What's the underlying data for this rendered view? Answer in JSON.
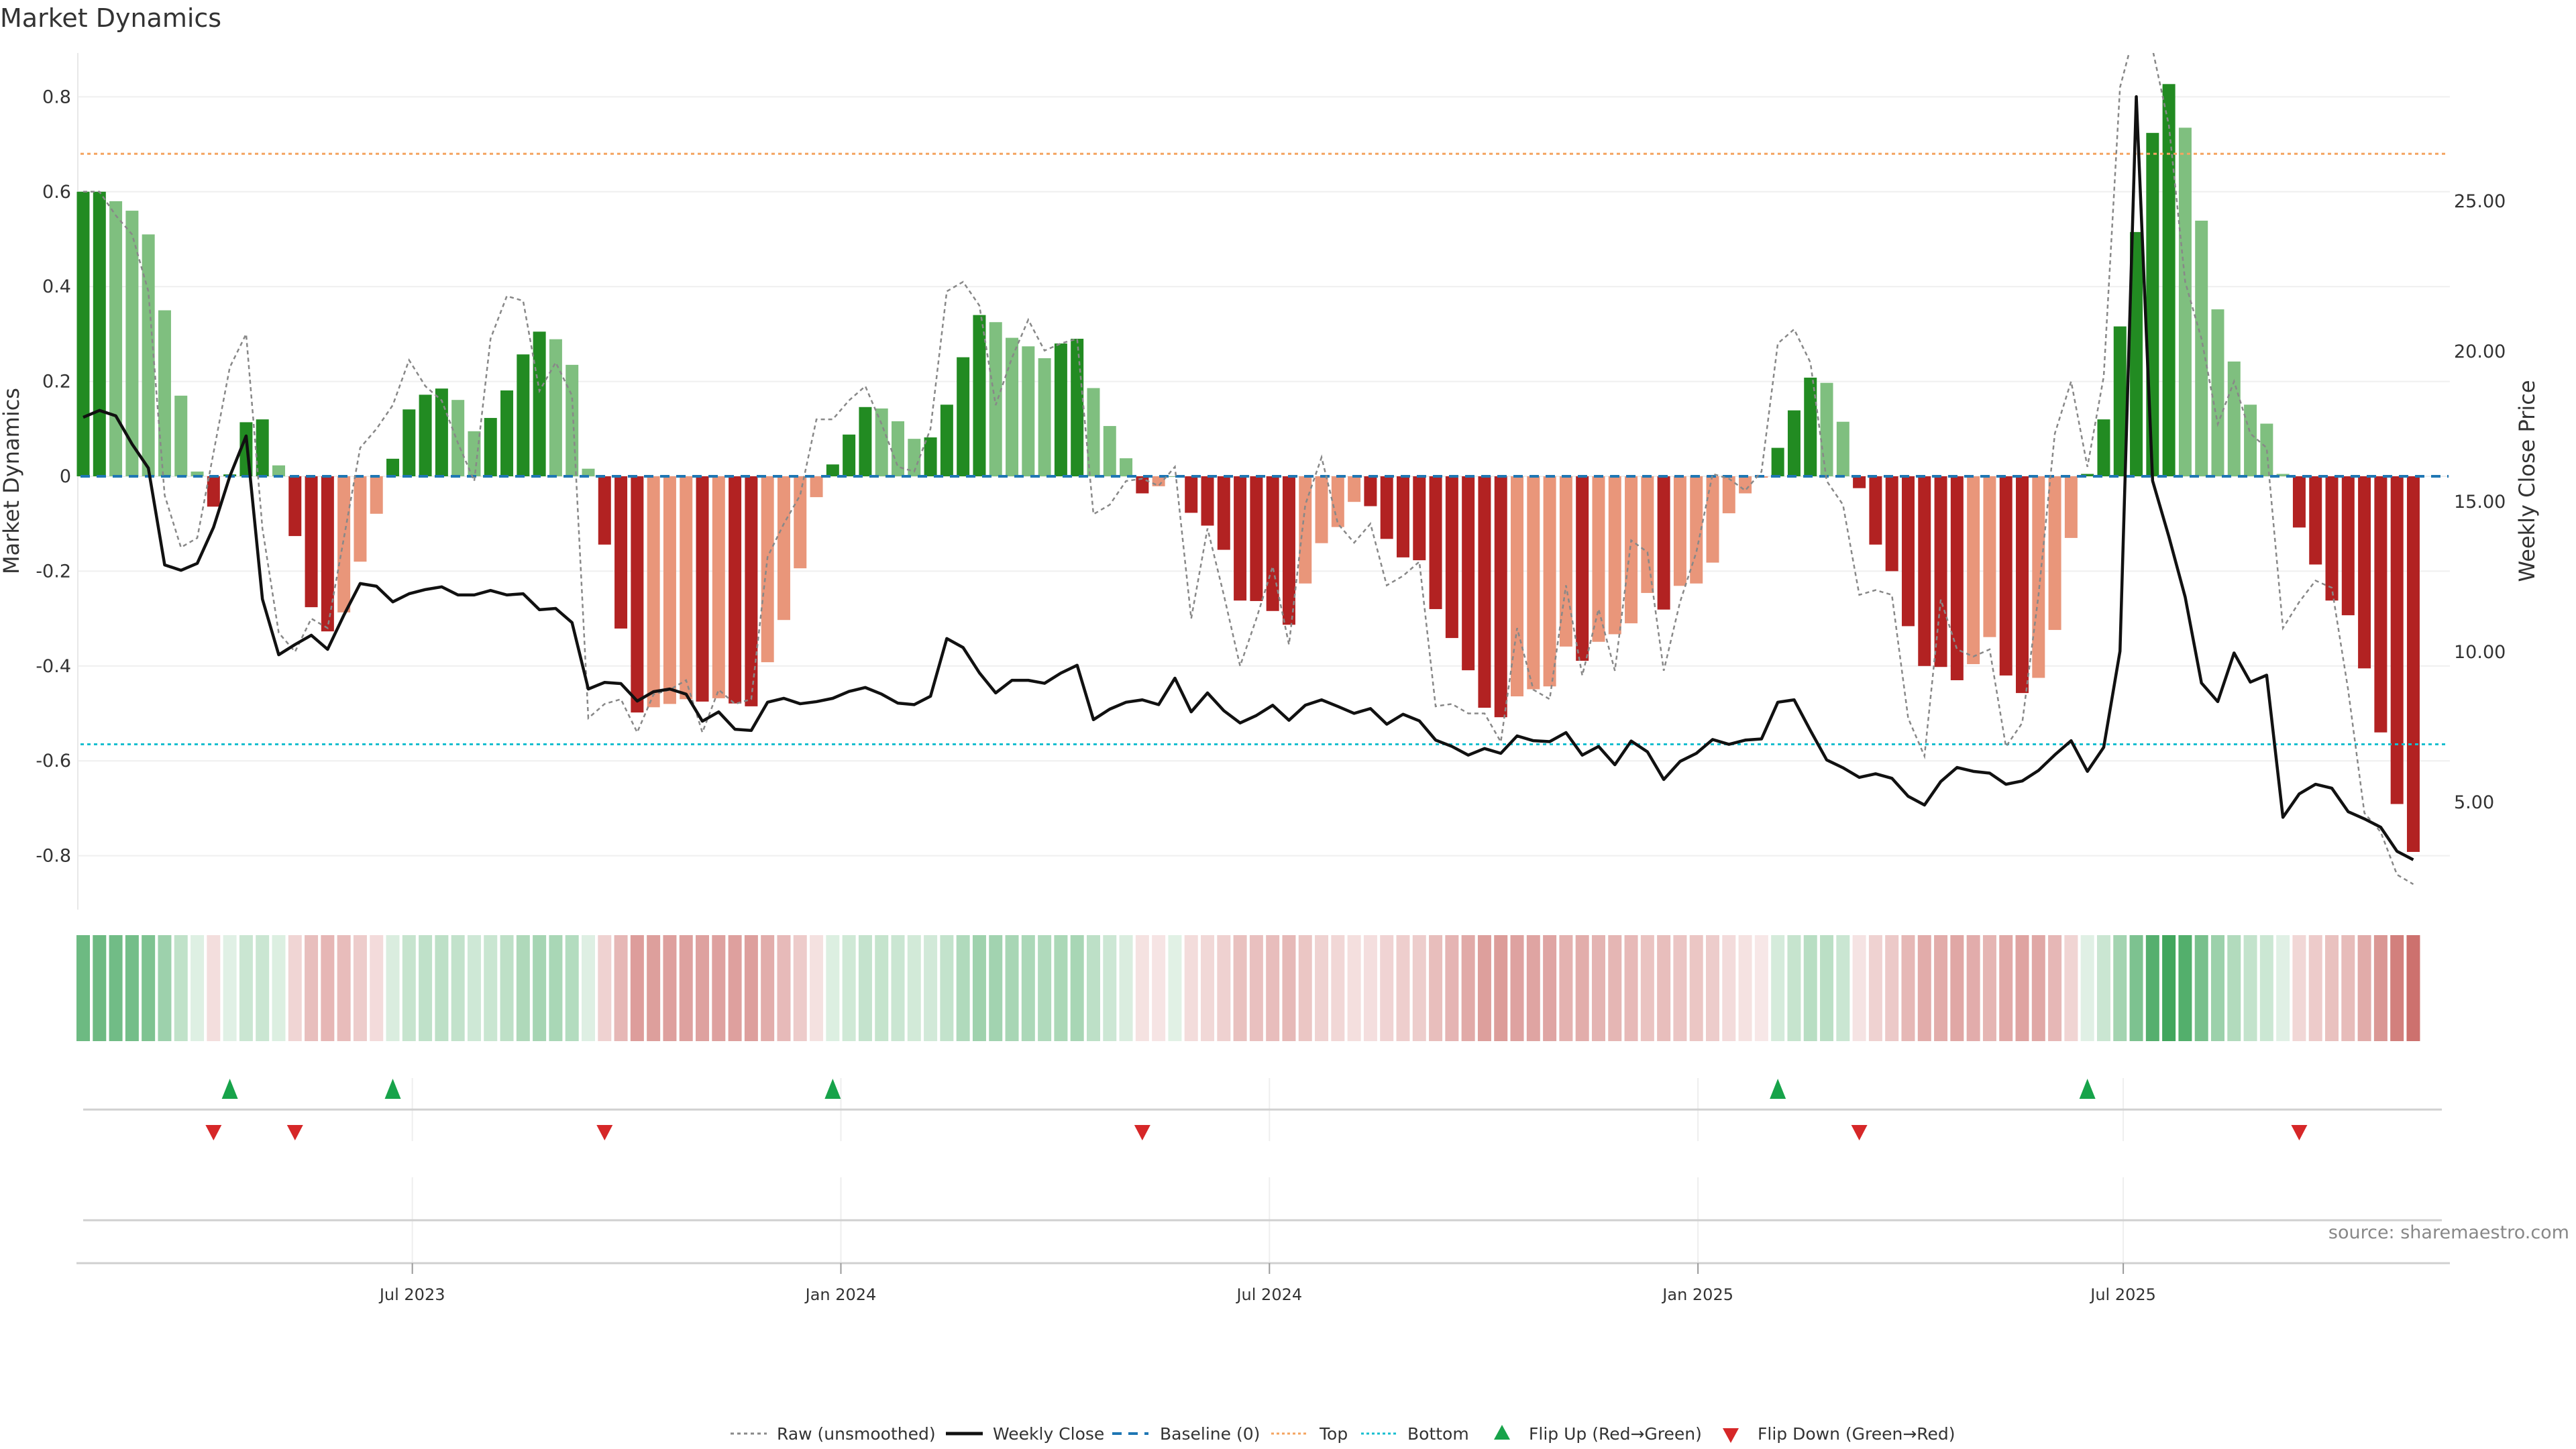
{
  "chart_data": {
    "type": "bar",
    "title": "Market Dynamics",
    "ylabel": "Market Dynamics",
    "y2label": "Weekly Close Price",
    "source": "source: sharemaestro.com",
    "x_start": "2023-02-03",
    "frequency": "weekly",
    "x_tick_labels": [
      "Jul 2023",
      "Jan 2024",
      "Jul 2024",
      "Jan 2025",
      "Jul 2025"
    ],
    "x_tick_positions_week_index": [
      21.2,
      47.5,
      73.8,
      100.1,
      126.2
    ],
    "ylim": [
      -0.9,
      0.89
    ],
    "y2lim": [
      1.43,
      29.9
    ],
    "y_ticks": [
      -0.8,
      -0.6,
      -0.4,
      -0.2,
      0,
      0.2,
      0.4,
      0.6,
      0.8
    ],
    "y_tick_labels": [
      "-0.8",
      "-0.6",
      "-0.4",
      "-0.2",
      "0",
      "0.2",
      "0.4",
      "0.6",
      "0.8"
    ],
    "y2_ticks": [
      5,
      10,
      15,
      20,
      25
    ],
    "y2_tick_labels": [
      "5.00",
      "10.00",
      "15.00",
      "20.00",
      "25.00"
    ],
    "top_threshold": 0.68,
    "bottom_threshold": -0.565,
    "baseline": 0,
    "colors": {
      "green_strong": "#228b22",
      "green_weak": "#7fbf7f",
      "red_strong": "#b22222",
      "red_weak": "#e9967a",
      "weekly_close": "#111111",
      "raw": "#888888",
      "baseline": "#1f77b4",
      "top": "#f4a460",
      "bottom": "#17becf",
      "flip_up": "#17a34a",
      "flip_down": "#d62728"
    },
    "series": [
      {
        "name": "Market Dynamics (smoothed)",
        "values": [
          0.6,
          0.6,
          0.58,
          0.56,
          0.51,
          0.35,
          0.17,
          0.01,
          -0.064,
          0.004,
          0.114,
          0.12,
          0.023,
          -0.126,
          -0.276,
          -0.327,
          -0.287,
          -0.18,
          -0.079,
          0.037,
          0.141,
          0.172,
          0.185,
          0.161,
          0.095,
          0.123,
          0.181,
          0.257,
          0.305,
          0.289,
          0.235,
          0.016,
          -0.144,
          -0.321,
          -0.498,
          -0.487,
          -0.48,
          -0.47,
          -0.475,
          -0.468,
          -0.479,
          -0.485,
          -0.392,
          -0.303,
          -0.194,
          -0.044,
          0.025,
          0.088,
          0.146,
          0.143,
          0.116,
          0.079,
          0.082,
          0.151,
          0.251,
          0.34,
          0.325,
          0.292,
          0.274,
          0.249,
          0.28,
          0.29,
          0.186,
          0.106,
          0.038,
          -0.036,
          -0.021,
          0,
          -0.077,
          -0.104,
          -0.155,
          -0.262,
          -0.263,
          -0.284,
          -0.313,
          -0.226,
          -0.141,
          -0.107,
          -0.054,
          -0.063,
          -0.132,
          -0.171,
          -0.177,
          -0.28,
          -0.341,
          -0.409,
          -0.488,
          -0.508,
          -0.464,
          -0.449,
          -0.443,
          -0.359,
          -0.389,
          -0.349,
          -0.333,
          -0.31,
          -0.246,
          -0.281,
          -0.231,
          -0.226,
          -0.182,
          -0.078,
          -0.036,
          -0.003,
          0.06,
          0.139,
          0.208,
          0.197,
          0.115,
          -0.025,
          -0.144,
          -0.2,
          -0.316,
          -0.4,
          -0.402,
          -0.43,
          -0.396,
          -0.339,
          -0.42,
          -0.457,
          -0.425,
          -0.324,
          -0.13,
          0.005,
          0.12,
          0.316,
          0.515,
          0.724,
          0.827,
          0.735,
          0.539,
          0.352,
          0.242,
          0.151,
          0.111,
          0.005,
          -0.108,
          -0.186,
          -0.262,
          -0.293,
          -0.405,
          -0.54,
          -0.691,
          -0.792
        ]
      },
      {
        "name": "Raw (unsmoothed)",
        "values": [
          0.6,
          0.6,
          0.55,
          0.51,
          0.39,
          -0.04,
          -0.15,
          -0.13,
          0.05,
          0.23,
          0.3,
          -0.11,
          -0.33,
          -0.37,
          -0.3,
          -0.32,
          -0.13,
          0.06,
          0.1,
          0.15,
          0.245,
          0.19,
          0.16,
          0.07,
          -0.01,
          0.29,
          0.38,
          0.37,
          0.18,
          0.24,
          0.17,
          -0.51,
          -0.48,
          -0.47,
          -0.54,
          -0.46,
          -0.45,
          -0.43,
          -0.54,
          -0.45,
          -0.48,
          -0.47,
          -0.17,
          -0.1,
          -0.04,
          0.12,
          0.12,
          0.16,
          0.19,
          0.11,
          0.02,
          0.01,
          0.1,
          0.39,
          0.41,
          0.36,
          0.15,
          0.25,
          0.33,
          0.265,
          0.28,
          0.29,
          -0.08,
          -0.06,
          -0.01,
          -0.005,
          -0.02,
          0.02,
          -0.3,
          -0.11,
          -0.25,
          -0.4,
          -0.3,
          -0.19,
          -0.355,
          -0.06,
          0.04,
          -0.1,
          -0.14,
          -0.1,
          -0.23,
          -0.21,
          -0.18,
          -0.485,
          -0.48,
          -0.5,
          -0.5,
          -0.56,
          -0.32,
          -0.45,
          -0.47,
          -0.23,
          -0.42,
          -0.28,
          -0.41,
          -0.135,
          -0.16,
          -0.41,
          -0.265,
          -0.16,
          0.005,
          -0.005,
          -0.03,
          0.01,
          0.28,
          0.31,
          0.24,
          -0.01,
          -0.06,
          -0.25,
          -0.24,
          -0.25,
          -0.51,
          -0.59,
          -0.26,
          -0.365,
          -0.38,
          -0.365,
          -0.57,
          -0.52,
          -0.25,
          0.09,
          0.2,
          0.02,
          0.21,
          0.82,
          0.95,
          0.9,
          0.74,
          0.41,
          0.29,
          0.11,
          0.2,
          0.09,
          0.06,
          -0.32,
          -0.265,
          -0.22,
          -0.235,
          -0.45,
          -0.71,
          -0.75,
          -0.84,
          -0.86
        ]
      },
      {
        "name": "Weekly Close",
        "axis": "right",
        "values": [
          17.81,
          18.04,
          17.86,
          16.92,
          16.12,
          12.9,
          12.72,
          12.95,
          14.15,
          15.85,
          17.19,
          11.76,
          9.91,
          10.25,
          10.56,
          10.09,
          11.23,
          12.28,
          12.19,
          11.67,
          11.94,
          12.08,
          12.17,
          11.9,
          11.9,
          12.05,
          11.9,
          11.94,
          11.41,
          11.45,
          10.98,
          8.77,
          8.99,
          8.95,
          8.37,
          8.68,
          8.77,
          8.6,
          7.7,
          8.01,
          7.43,
          7.39,
          8.33,
          8.46,
          8.28,
          8.35,
          8.46,
          8.69,
          8.82,
          8.6,
          8.3,
          8.25,
          8.53,
          10.45,
          10.15,
          9.31,
          8.64,
          9.06,
          9.06,
          8.96,
          9.3,
          9.56,
          7.75,
          8.1,
          8.33,
          8.41,
          8.25,
          9.13,
          8.01,
          8.64,
          8.05,
          7.64,
          7.89,
          8.23,
          7.73,
          8.23,
          8.41,
          8.19,
          7.96,
          8.12,
          7.6,
          7.93,
          7.71,
          7.07,
          6.86,
          6.57,
          6.79,
          6.63,
          7.21,
          7.05,
          7.02,
          7.32,
          6.57,
          6.86,
          6.25,
          7.04,
          6.68,
          5.76,
          6.36,
          6.63,
          7.09,
          6.93,
          7.07,
          7.11,
          8.33,
          8.41,
          7.39,
          6.41,
          6.15,
          5.83,
          5.95,
          5.8,
          5.2,
          4.91,
          5.69,
          6.16,
          6.03,
          5.97,
          5.6,
          5.71,
          6.06,
          6.58,
          7.05,
          6.03,
          6.83,
          10.03,
          28.48,
          15.7,
          13.84,
          11.83,
          8.97,
          8.35,
          9.97,
          9.0,
          9.23,
          4.5,
          5.28,
          5.6,
          5.47,
          4.69,
          4.45,
          4.17,
          3.37,
          3.09
        ]
      }
    ],
    "flip_up_week_index": [
      10,
      20,
      47,
      105,
      124
    ],
    "flip_down_week_index": [
      9,
      14,
      33,
      66,
      110,
      137
    ],
    "legend": {
      "position": "bottom-center",
      "items": [
        "Raw (unsmoothed)",
        "Weekly Close",
        "Baseline (0)",
        "Top",
        "Bottom",
        "Flip Up (Red→Green)",
        "Flip Down (Green→Red)"
      ]
    }
  }
}
